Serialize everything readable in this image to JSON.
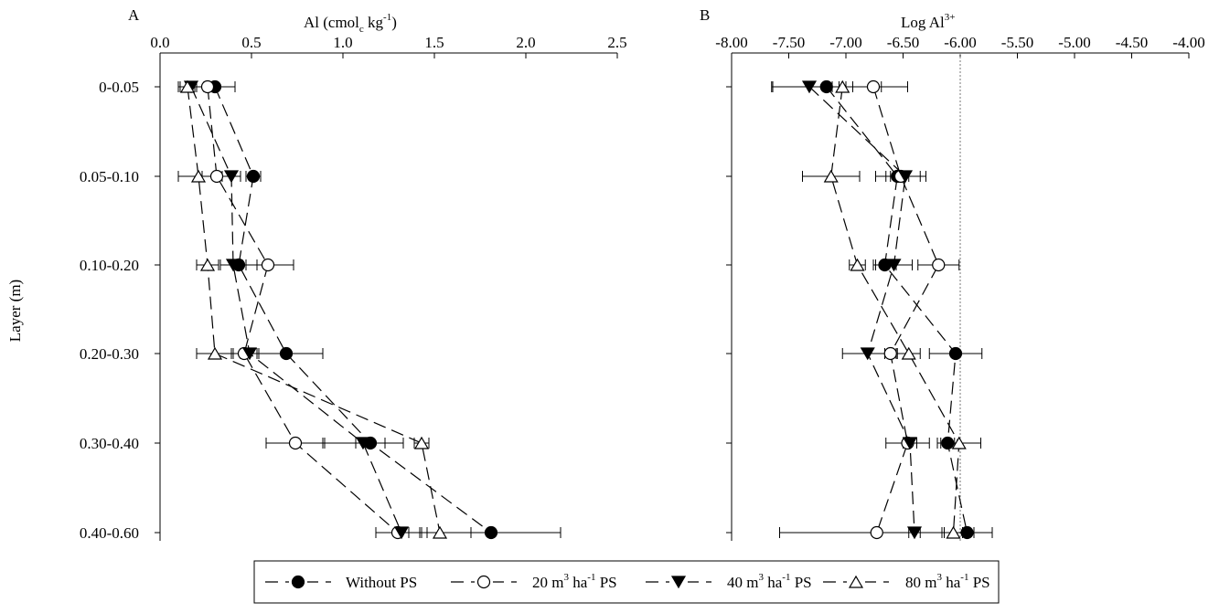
{
  "chart_data": [
    {
      "type": "line",
      "panel_letter": "A",
      "orientation": "horizontal-value-axis-top",
      "title_parts": {
        "pre": "Al (cmol",
        "sub": "c",
        "mid": " kg",
        "sup": "-1",
        "post": ")"
      },
      "ylabel": "Layer (m)",
      "categories": [
        "0-0.05",
        "0.05-0.10",
        "0.10-0.20",
        "0.20-0.30",
        "0.30-0.40",
        "0.40-0.60"
      ],
      "xlim": [
        0,
        2.5
      ],
      "xticks": [
        0,
        0.5,
        1.0,
        1.5,
        2.0,
        2.5
      ],
      "xtick_labels": [
        "0.0",
        "0.5",
        "1.0",
        "1.5",
        "2.0",
        "2.5"
      ],
      "series": [
        {
          "key": "without",
          "values": [
            0.3,
            0.51,
            0.43,
            0.69,
            1.15,
            1.81
          ],
          "errors": [
            0.11,
            0.04,
            0.1,
            0.2,
            0.08,
            0.38
          ]
        },
        {
          "key": "ps20",
          "values": [
            0.26,
            0.31,
            0.59,
            0.46,
            0.74,
            1.3
          ],
          "errors": [
            0.15,
            0.08,
            0.14,
            0.07,
            0.16,
            0.12
          ]
        },
        {
          "key": "ps40",
          "values": [
            0.17,
            0.39,
            0.4,
            0.49,
            1.11,
            1.32
          ],
          "errors": [
            0.07,
            0.05,
            0.07,
            0.05,
            0.22,
            0.14
          ]
        },
        {
          "key": "ps80",
          "values": [
            0.15,
            0.21,
            0.26,
            0.3,
            1.43,
            1.53
          ],
          "errors": [
            0.05,
            0.11,
            0.06,
            0.1,
            0.04,
            0.17
          ]
        }
      ]
    },
    {
      "type": "line",
      "panel_letter": "B",
      "orientation": "horizontal-value-axis-top",
      "title_parts": {
        "pre": "Log Al",
        "sup": "3+"
      },
      "categories": [
        "0-0.05",
        "0.05-0.10",
        "0.10-0.20",
        "0.20-0.30",
        "0.30-0.40",
        "0.40-0.60"
      ],
      "xlim": [
        -8.0,
        -4.0
      ],
      "xticks": [
        -8.0,
        -7.5,
        -7.0,
        -6.5,
        -6.0,
        -5.5,
        -5.0,
        -4.5,
        -4.0
      ],
      "xtick_labels": [
        "-8.00",
        "-7.50",
        "-7.00",
        "-6.50",
        "-6.00",
        "-5.50",
        "-5.00",
        "-4.50",
        "-4.00"
      ],
      "reference_line": -6.0,
      "series": [
        {
          "key": "without",
          "values": [
            -7.17,
            -6.55,
            -6.66,
            -6.04,
            -6.11,
            -5.94
          ],
          "errors": [
            0.48,
            0.1,
            0.1,
            0.23,
            0.06,
            0.22
          ]
        },
        {
          "key": "ps20",
          "values": [
            -6.76,
            -6.52,
            -6.19,
            -6.61,
            -6.46,
            -6.73
          ],
          "errors": [
            0.3,
            0.22,
            0.18,
            0.05,
            0.19,
            0.85
          ]
        },
        {
          "key": "ps40",
          "values": [
            -7.32,
            -6.48,
            -6.58,
            -6.81,
            -6.44,
            -6.4
          ],
          "errors": [
            0.32,
            0.13,
            0.16,
            0.22,
            0.06,
            0.05
          ]
        },
        {
          "key": "ps80",
          "values": [
            -7.03,
            -7.13,
            -6.9,
            -6.45,
            -6.01,
            -6.06
          ],
          "errors": [
            0.09,
            0.25,
            0.07,
            0.1,
            0.19,
            0.08
          ]
        }
      ]
    }
  ],
  "legend": [
    {
      "key": "without",
      "marker": "circle-filled",
      "pre": "Without PS"
    },
    {
      "key": "ps20",
      "marker": "circle-open",
      "pre": "20 m",
      "sup1": "3",
      "mid": " ha",
      "sup2": "-1",
      "post": " PS"
    },
    {
      "key": "ps40",
      "marker": "triangle-down-filled",
      "pre": "40 m",
      "sup1": "3",
      "mid": " ha",
      "sup2": "-1",
      "post": " PS"
    },
    {
      "key": "ps80",
      "marker": "triangle-up-open",
      "pre": "80 m",
      "sup1": "3",
      "mid": " ha",
      "sup2": "-1",
      "post": " PS"
    }
  ]
}
